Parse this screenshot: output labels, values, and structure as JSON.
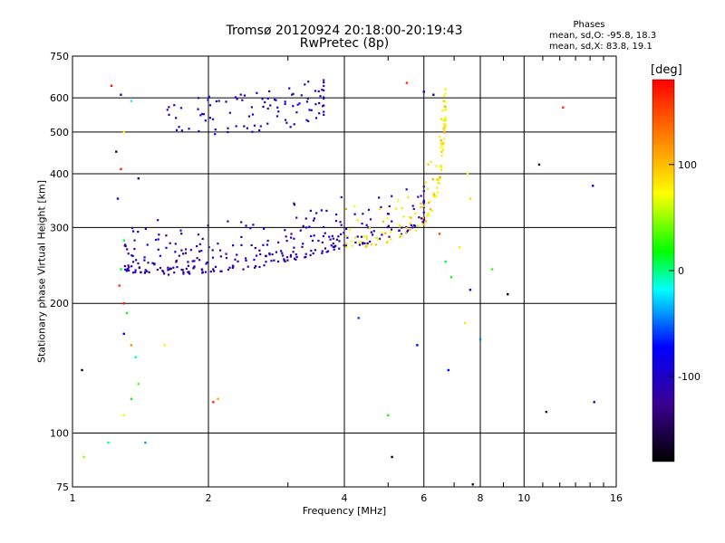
{
  "header": {
    "title": "Tromsø 20120924 20:18:00-20:19:43",
    "subtitle": "RwPretec (8p)",
    "phases_title": "Phases",
    "phases_o": "mean, sd,O: -95.8, 18.3",
    "phases_x": "mean, sd,X:  83.8, 19.1"
  },
  "chart_data": {
    "type": "scatter",
    "xlabel": "Frequency [MHz]",
    "ylabel": "Stationary phase Virtual Height [km]",
    "x_scale": "log",
    "y_scale": "log",
    "xlim": [
      1,
      16
    ],
    "ylim": [
      75,
      750
    ],
    "x_ticks": [
      1,
      2,
      4,
      6,
      8,
      10,
      16
    ],
    "y_ticks": [
      75,
      100,
      200,
      300,
      400,
      500,
      600,
      750
    ],
    "grid": true,
    "colorbar": {
      "label": "[deg]",
      "range": [
        -180,
        180
      ],
      "ticks": [
        100,
        0,
        -100
      ]
    },
    "series": [
      {
        "trace": "O-mode F2 trace",
        "points": [
          [
            1.3,
            236
          ],
          [
            1.35,
            235
          ],
          [
            1.4,
            236
          ],
          [
            1.5,
            234
          ],
          [
            1.6,
            233
          ],
          [
            1.7,
            233
          ],
          [
            1.8,
            234
          ],
          [
            1.9,
            235
          ],
          [
            2.0,
            236
          ],
          [
            2.2,
            238
          ],
          [
            2.4,
            240
          ],
          [
            2.6,
            243
          ],
          [
            2.8,
            246
          ],
          [
            3.0,
            250
          ],
          [
            3.2,
            254
          ],
          [
            3.4,
            258
          ],
          [
            3.6,
            262
          ],
          [
            3.8,
            266
          ],
          [
            4.0,
            270
          ],
          [
            4.5,
            275
          ],
          [
            5.0,
            282
          ],
          [
            5.5,
            292
          ],
          [
            6.0,
            310
          ]
        ]
      },
      {
        "trace": "X-mode F2 trace",
        "points": [
          [
            4.0,
            265
          ],
          [
            4.3,
            268
          ],
          [
            4.6,
            272
          ],
          [
            5.0,
            277
          ],
          [
            5.4,
            284
          ],
          [
            5.8,
            295
          ],
          [
            6.1,
            310
          ],
          [
            6.3,
            330
          ],
          [
            6.45,
            360
          ],
          [
            6.55,
            400
          ],
          [
            6.6,
            440
          ],
          [
            6.65,
            480
          ],
          [
            6.7,
            520
          ]
        ]
      },
      {
        "trace": "upper multipath band",
        "points": [
          [
            1.6,
            480
          ],
          [
            1.8,
            485
          ],
          [
            2.0,
            490
          ],
          [
            2.2,
            495
          ],
          [
            2.4,
            498
          ],
          [
            2.6,
            500
          ],
          [
            2.8,
            505
          ],
          [
            3.0,
            510
          ],
          [
            3.2,
            520
          ],
          [
            3.4,
            530
          ],
          [
            3.6,
            540
          ]
        ]
      },
      {
        "trace": "scattered points",
        "points": [
          [
            1.22,
            640
          ],
          [
            1.28,
            610
          ],
          [
            1.35,
            590
          ],
          [
            1.3,
            500
          ],
          [
            1.25,
            450
          ],
          [
            1.28,
            410
          ],
          [
            1.26,
            350
          ],
          [
            1.3,
            280
          ],
          [
            1.28,
            240
          ],
          [
            1.27,
            220
          ],
          [
            1.3,
            200
          ],
          [
            1.32,
            190
          ],
          [
            1.3,
            170
          ],
          [
            1.35,
            160
          ],
          [
            1.38,
            150
          ],
          [
            1.4,
            130
          ],
          [
            1.35,
            120
          ],
          [
            1.3,
            110
          ],
          [
            1.45,
            95
          ],
          [
            1.2,
            95
          ],
          [
            1.06,
            88
          ],
          [
            1.05,
            140
          ],
          [
            1.4,
            390
          ],
          [
            1.6,
            160
          ],
          [
            2.05,
            118
          ],
          [
            2.1,
            120
          ],
          [
            4.3,
            185
          ],
          [
            5.0,
            110
          ],
          [
            5.1,
            88
          ],
          [
            5.5,
            650
          ],
          [
            6.0,
            620
          ],
          [
            6.3,
            610
          ],
          [
            6.5,
            290
          ],
          [
            6.7,
            250
          ],
          [
            6.9,
            230
          ],
          [
            7.2,
            270
          ],
          [
            7.5,
            400
          ],
          [
            7.6,
            350
          ],
          [
            7.4,
            180
          ],
          [
            7.6,
            215
          ],
          [
            7.7,
            76
          ],
          [
            8.0,
            165
          ],
          [
            8.5,
            240
          ],
          [
            9.2,
            210
          ],
          [
            10.8,
            420
          ],
          [
            11.2,
            112
          ],
          [
            12.2,
            570
          ],
          [
            14.2,
            375
          ],
          [
            14.3,
            118
          ],
          [
            5.8,
            160
          ],
          [
            6.8,
            140
          ]
        ]
      }
    ]
  }
}
